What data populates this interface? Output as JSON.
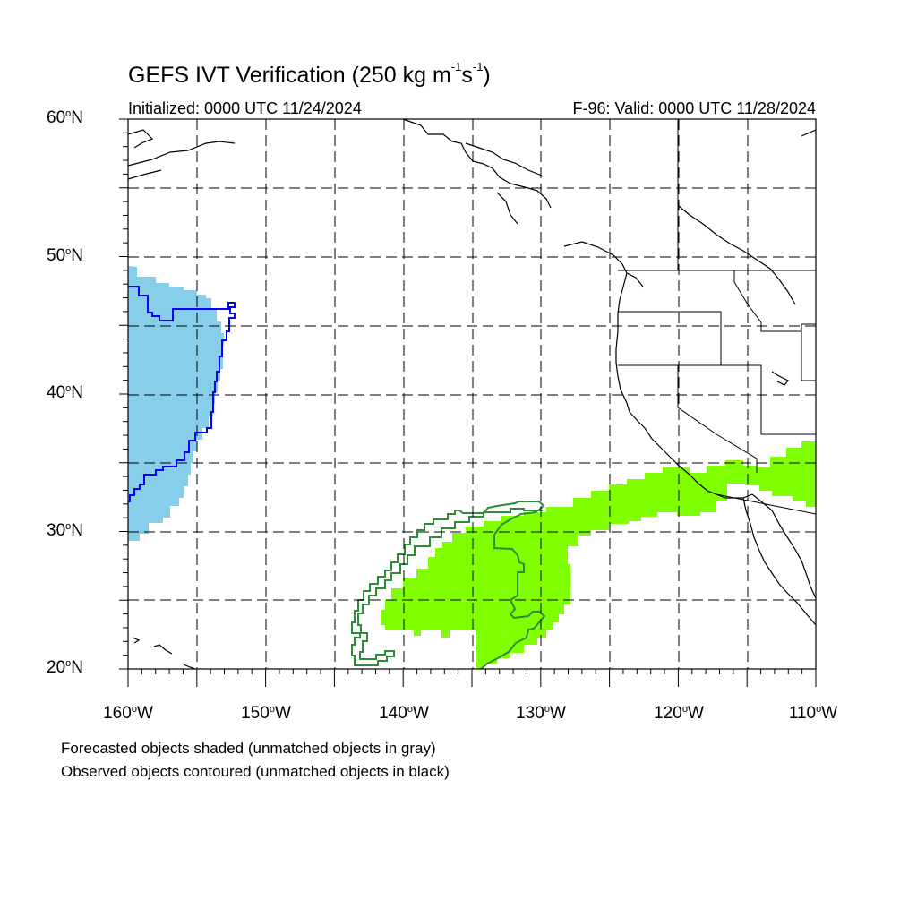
{
  "header": {
    "title_main": "GEFS IVT Verification (250 kg m",
    "title_exp1": "-1",
    "title_mid": "s",
    "title_exp2": "-1",
    "title_end": ")",
    "initialized": "Initialized: 0000 UTC 11/24/2024",
    "valid": "F-96: Valid: 0000 UTC 11/28/2024"
  },
  "axes": {
    "lat_labels": [
      {
        "value": "60",
        "suffix": "N"
      },
      {
        "value": "50",
        "suffix": "N"
      },
      {
        "value": "40",
        "suffix": "N"
      },
      {
        "value": "30",
        "suffix": "N"
      },
      {
        "value": "20",
        "suffix": "N"
      }
    ],
    "lon_labels": [
      {
        "value": "160",
        "suffix": "W"
      },
      {
        "value": "150",
        "suffix": "W"
      },
      {
        "value": "140",
        "suffix": "W"
      },
      {
        "value": "130",
        "suffix": "W"
      },
      {
        "value": "120",
        "suffix": "W"
      },
      {
        "value": "110",
        "suffix": "W"
      }
    ],
    "degree_symbol": "o",
    "lat_range": [
      20,
      60
    ],
    "lon_range": [
      -160,
      -110
    ],
    "grid": "dashed every 5 degrees"
  },
  "legend": {
    "line1": "Forecasted objects shaded (unmatched objects in gray)",
    "line2": "Observed objects contoured (unmatched objects in black)"
  },
  "colors": {
    "forecast_object_1": "#87ceeb",
    "observed_contour_1": "#0000ff",
    "forecast_object_2": "#7fff00",
    "observed_contour_2": "#2e8b3a",
    "coastline": "#000000",
    "grid": "#000000"
  }
}
